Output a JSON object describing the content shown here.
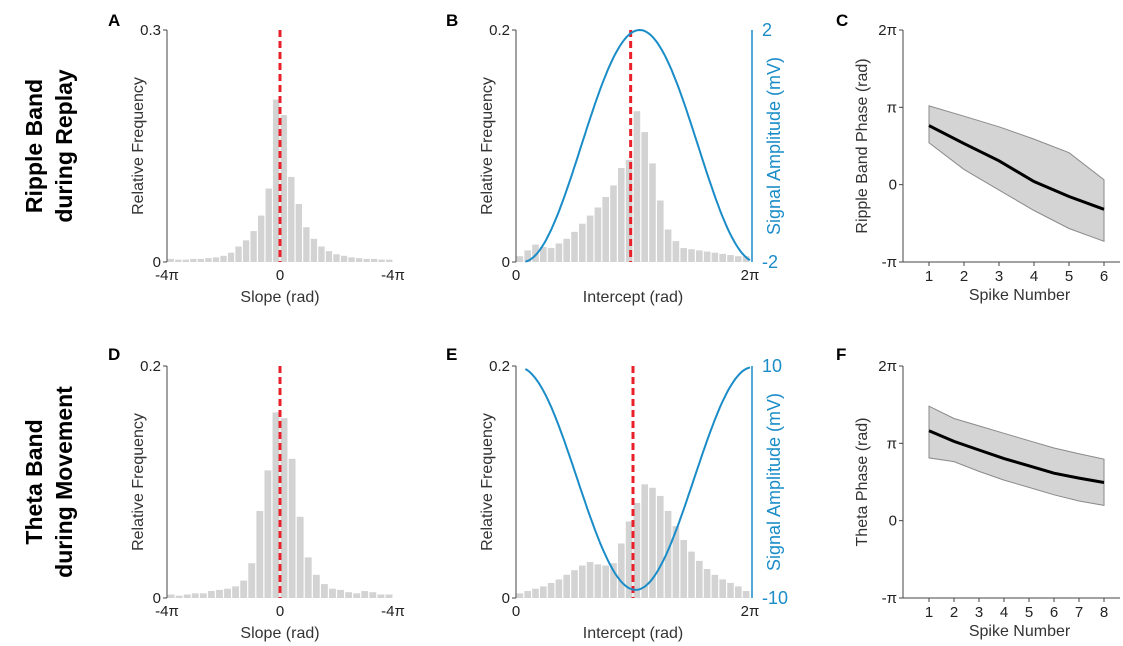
{
  "row_titles": [
    {
      "line1": "Ripple Band",
      "line2": "during Replay"
    },
    {
      "line1": "Theta Band",
      "line2": "during Movement"
    }
  ],
  "colors": {
    "bars": "#d3d3d3",
    "median_line": "#e8202a",
    "signal": "#1a8cc8",
    "mean_line": "#000000",
    "band": "#d4d4d4"
  },
  "chart_data": [
    {
      "panel": "A",
      "type": "bar",
      "xlabel": "Slope (rad)",
      "ylabel": "Relative Frequency",
      "xticks": [
        "-4π",
        "0",
        "-4π"
      ],
      "yticks": [
        "0",
        "0.3"
      ],
      "ylim": [
        0,
        0.3
      ],
      "values": [
        0.004,
        0.003,
        0.003,
        0.004,
        0.004,
        0.005,
        0.006,
        0.008,
        0.012,
        0.02,
        0.028,
        0.04,
        0.06,
        0.095,
        0.21,
        0.19,
        0.11,
        0.075,
        0.045,
        0.03,
        0.02,
        0.014,
        0.01,
        0.008,
        0.006,
        0.005,
        0.004,
        0.004,
        0.003,
        0.003
      ],
      "median_x": 0
    },
    {
      "panel": "B",
      "type": "bar",
      "xlabel": "Intercept (rad)",
      "ylabel": "Relative Frequency",
      "y2label": "Signal Amplitude (mV)",
      "xticks": [
        "0",
        "2π"
      ],
      "yticks": [
        "0",
        "0.2"
      ],
      "ylim": [
        0,
        0.2
      ],
      "y2ticks": [
        "-2",
        "2"
      ],
      "y2lim": [
        -2,
        2
      ],
      "values": [
        0.005,
        0.01,
        0.015,
        0.013,
        0.012,
        0.016,
        0.02,
        0.026,
        0.033,
        0.04,
        0.047,
        0.056,
        0.066,
        0.081,
        0.088,
        0.13,
        0.112,
        0.085,
        0.053,
        0.028,
        0.018,
        0.012,
        0.011,
        0.01,
        0.009,
        0.008,
        0.007,
        0.006,
        0.005,
        0.005
      ],
      "median_x": 0.49,
      "signal": {
        "amplitude": 2,
        "offset": 0.0,
        "phase": -1.75,
        "x_start": 0.04,
        "x_end": 1.0,
        "y_start": 1.3,
        "y_end": 1.5
      }
    },
    {
      "panel": "C",
      "type": "line",
      "xlabel": "Spike Number",
      "ylabel": "Ripple Band Phase (rad)",
      "xticks": [
        "1",
        "2",
        "3",
        "4",
        "5",
        "6"
      ],
      "yticks": [
        "-π",
        "0",
        "π",
        "2π"
      ],
      "x": [
        1,
        2,
        3,
        4,
        5,
        6
      ],
      "mean": [
        2.4,
        1.67,
        0.97,
        0.13,
        -0.48,
        -1.0
      ],
      "upper": [
        3.2,
        2.78,
        2.35,
        1.85,
        1.3,
        0.2
      ],
      "lower": [
        1.7,
        0.62,
        -0.22,
        -1.05,
        -1.78,
        -2.3
      ]
    },
    {
      "panel": "D",
      "type": "bar",
      "xlabel": "Slope (rad)",
      "ylabel": "Relative Frequency",
      "xticks": [
        "-4π",
        "0",
        "-4π"
      ],
      "yticks": [
        "0",
        "0.2"
      ],
      "ylim": [
        0,
        0.2
      ],
      "values": [
        0.003,
        0.002,
        0.003,
        0.004,
        0.004,
        0.006,
        0.007,
        0.008,
        0.01,
        0.015,
        0.03,
        0.075,
        0.11,
        0.16,
        0.155,
        0.12,
        0.07,
        0.035,
        0.02,
        0.012,
        0.008,
        0.007,
        0.005,
        0.004,
        0.006,
        0.005,
        0.003,
        0.003
      ],
      "median_x": 0
    },
    {
      "panel": "E",
      "type": "bar",
      "xlabel": "Intercept (rad)",
      "ylabel": "Relative Frequency",
      "y2label": "Signal Amplitude (mV)",
      "xticks": [
        "0",
        "2π"
      ],
      "yticks": [
        "0",
        "0.2"
      ],
      "ylim": [
        0,
        0.2
      ],
      "y2ticks": [
        "-10",
        "10"
      ],
      "y2lim": [
        -10,
        10
      ],
      "values": [
        0.004,
        0.006,
        0.008,
        0.01,
        0.013,
        0.016,
        0.02,
        0.024,
        0.028,
        0.031,
        0.029,
        0.028,
        0.03,
        0.047,
        0.066,
        0.082,
        0.098,
        0.095,
        0.088,
        0.075,
        0.062,
        0.05,
        0.04,
        0.032,
        0.025,
        0.02,
        0.016,
        0.013,
        0.01,
        0.006
      ],
      "median_x": 0.5,
      "signal": {
        "amplitude": 9.6,
        "offset": 0.3,
        "phase": 1.5,
        "x_start": 0.04,
        "x_end": 1.0
      }
    },
    {
      "panel": "F",
      "type": "line",
      "xlabel": "Spike Number",
      "ylabel": "Theta Phase (rad)",
      "xticks": [
        "1",
        "2",
        "3",
        "4",
        "5",
        "6",
        "7",
        "8"
      ],
      "yticks": [
        "-π",
        "0",
        "π",
        "2π"
      ],
      "x": [
        1,
        2,
        3,
        4,
        5,
        6,
        7,
        8
      ],
      "mean": [
        3.65,
        3.22,
        2.87,
        2.52,
        2.23,
        1.93,
        1.73,
        1.55
      ],
      "upper": [
        4.65,
        4.15,
        3.85,
        3.55,
        3.25,
        2.95,
        2.72,
        2.5
      ],
      "lower": [
        2.55,
        2.4,
        2.0,
        1.65,
        1.35,
        1.05,
        0.8,
        0.62
      ]
    }
  ]
}
